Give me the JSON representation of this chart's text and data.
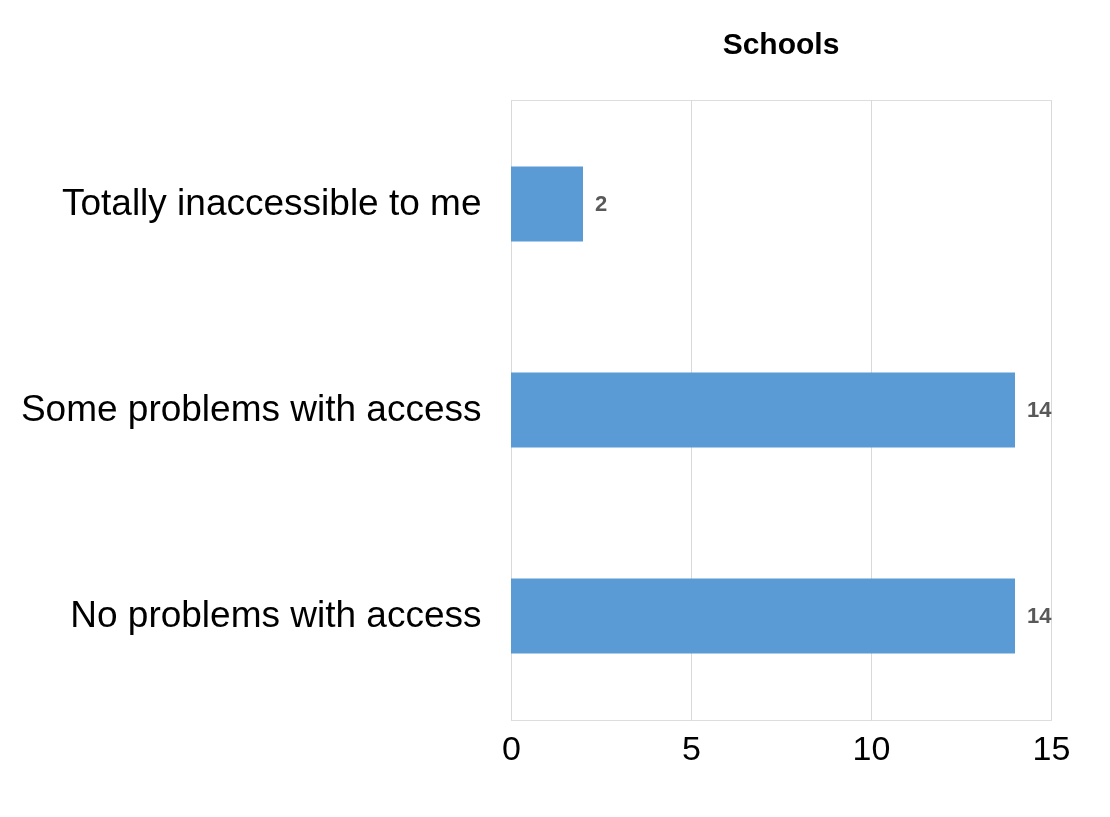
{
  "chart_data": {
    "type": "bar",
    "title": "Schools",
    "orientation": "horizontal",
    "categories": [
      "Totally inaccessible to me",
      "Some problems with access",
      "No problems with access"
    ],
    "values": [
      2,
      14,
      14
    ],
    "color": "#5b9bd5",
    "xlim": [
      0,
      15
    ],
    "xticks": [
      0,
      5,
      10,
      15
    ],
    "grid": "x",
    "data_labels": true
  }
}
